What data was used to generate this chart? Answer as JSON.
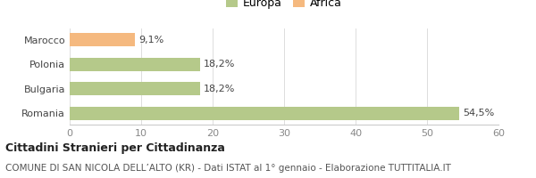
{
  "categories": [
    "Marocco",
    "Polonia",
    "Bulgaria",
    "Romania"
  ],
  "values": [
    9.1,
    18.2,
    18.2,
    54.5
  ],
  "labels": [
    "9,1%",
    "18,2%",
    "18,2%",
    "54,5%"
  ],
  "colors": [
    "#f5b97f",
    "#b5c98a",
    "#b5c98a",
    "#b5c98a"
  ],
  "legend": [
    {
      "label": "Europa",
      "color": "#b5c98a"
    },
    {
      "label": "Africa",
      "color": "#f5b97f"
    }
  ],
  "xlim": [
    0,
    60
  ],
  "xticks": [
    0,
    10,
    20,
    30,
    40,
    50,
    60
  ],
  "title_bold": "Cittadini Stranieri per Cittadinanza",
  "subtitle": "COMUNE DI SAN NICOLA DELL’ALTO (KR) - Dati ISTAT al 1° gennaio - Elaborazione TUTTITALIA.IT",
  "background_color": "#ffffff",
  "bar_height": 0.55,
  "title_fontsize": 9,
  "subtitle_fontsize": 7.5,
  "label_fontsize": 8,
  "tick_fontsize": 8,
  "legend_fontsize": 9
}
